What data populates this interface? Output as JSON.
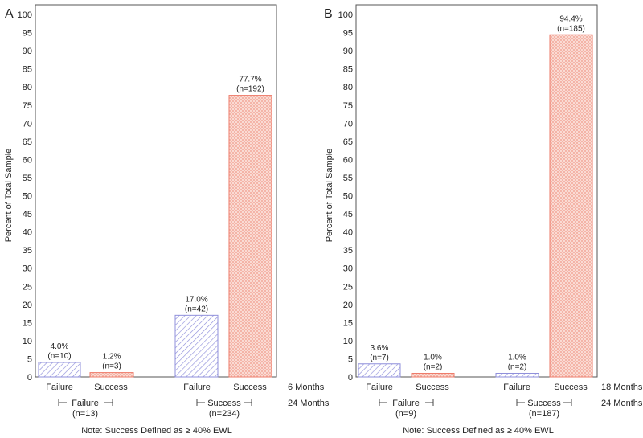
{
  "chart_data": [
    {
      "type": "bar",
      "panel_label": "A",
      "ylabel": "Percent of Total Sample",
      "ylim": [
        0,
        100
      ],
      "yticks": [
        0,
        5,
        10,
        15,
        20,
        25,
        30,
        35,
        40,
        45,
        50,
        55,
        60,
        65,
        70,
        75,
        80,
        85,
        90,
        95,
        100
      ],
      "bars": [
        {
          "category": "Failure",
          "group": "Failure",
          "value": 4.0,
          "pct_label": "4.0%",
          "n_label": "(n=10)",
          "series": "failure"
        },
        {
          "category": "Success",
          "group": "Failure",
          "value": 1.2,
          "pct_label": "1.2%",
          "n_label": "(n=3)",
          "series": "success"
        },
        {
          "category": "Failure",
          "group": "Success",
          "value": 17.0,
          "pct_label": "17.0%",
          "n_label": "(n=42)",
          "series": "failure"
        },
        {
          "category": "Success",
          "group": "Success",
          "value": 77.7,
          "pct_label": "77.7%",
          "n_label": "(n=192)",
          "series": "success"
        }
      ],
      "inner_axis_title": "6 Months",
      "groups": [
        {
          "label": "Failure",
          "n_label": "(n=13)"
        },
        {
          "label": "Success",
          "n_label": "(n=234)"
        }
      ],
      "outer_axis_title": "24 Months",
      "note": "Note:  Success Defined as ≥ 40% EWL"
    },
    {
      "type": "bar",
      "panel_label": "B",
      "ylabel": "Percent of Total Sample",
      "ylim": [
        0,
        100
      ],
      "yticks": [
        0,
        5,
        10,
        15,
        20,
        25,
        30,
        35,
        40,
        45,
        50,
        55,
        60,
        65,
        70,
        75,
        80,
        85,
        90,
        95,
        100
      ],
      "bars": [
        {
          "category": "Failure",
          "group": "Failure",
          "value": 3.6,
          "pct_label": "3.6%",
          "n_label": "(n=7)",
          "series": "failure"
        },
        {
          "category": "Success",
          "group": "Failure",
          "value": 1.0,
          "pct_label": "1.0%",
          "n_label": "(n=2)",
          "series": "success"
        },
        {
          "category": "Failure",
          "group": "Success",
          "value": 1.0,
          "pct_label": "1.0%",
          "n_label": "(n=2)",
          "series": "failure"
        },
        {
          "category": "Success",
          "group": "Success",
          "value": 94.4,
          "pct_label": "94.4%",
          "n_label": "(n=185)",
          "series": "success"
        }
      ],
      "inner_axis_title": "18 Months",
      "groups": [
        {
          "label": "Failure",
          "n_label": "(n=9)"
        },
        {
          "label": "Success",
          "n_label": "(n=187)"
        }
      ],
      "outer_axis_title": "24 Months",
      "note": "Note:  Success Defined as ≥ 40% EWL"
    }
  ],
  "colors": {
    "failure_stroke": "#8f8fdb",
    "success_stroke": "#ee7b6a",
    "axis": "#555555",
    "text": "#222222"
  }
}
